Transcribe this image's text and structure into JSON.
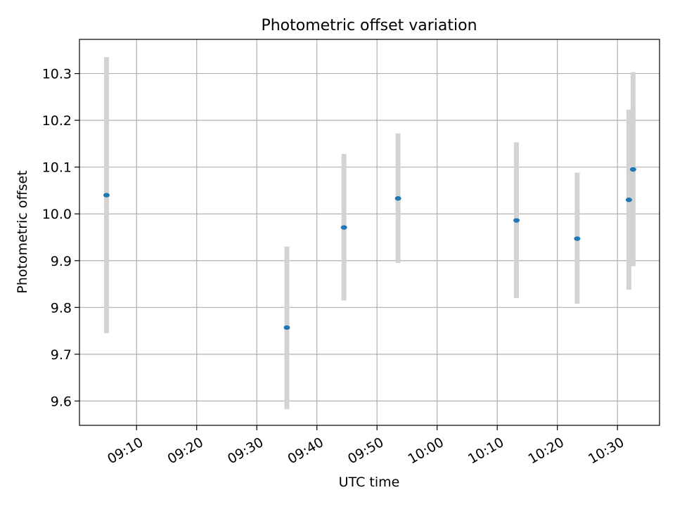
{
  "chart_data": {
    "type": "scatter",
    "title": "Photometric offset variation",
    "xlabel": "UTC time",
    "ylabel": "Photometric offset",
    "x_ticks": [
      "09:10",
      "09:20",
      "09:30",
      "09:40",
      "09:50",
      "10:00",
      "10:10",
      "10:20",
      "10:30"
    ],
    "y_ticks": [
      "9.6",
      "9.7",
      "9.8",
      "9.9",
      "10.0",
      "10.1",
      "10.2",
      "10.3"
    ],
    "xlim": [
      "09:00.5",
      "10:37"
    ],
    "ylim": [
      9.548,
      10.373
    ],
    "grid": true,
    "colors": {
      "marker": "#1f77b4",
      "errorbar": "#d3d3d3",
      "grid": "#b0b0b0"
    },
    "points": [
      {
        "x": "09:05",
        "y": 10.04,
        "yerr_low": 9.745,
        "yerr_high": 10.335
      },
      {
        "x": "09:35",
        "y": 9.757,
        "yerr_low": 9.583,
        "yerr_high": 9.93
      },
      {
        "x": "09:44.5",
        "y": 9.971,
        "yerr_low": 9.815,
        "yerr_high": 10.128
      },
      {
        "x": "09:53.5",
        "y": 10.033,
        "yerr_low": 9.895,
        "yerr_high": 10.172
      },
      {
        "x": "10:13.2",
        "y": 9.986,
        "yerr_low": 9.82,
        "yerr_high": 10.153
      },
      {
        "x": "10:23.3",
        "y": 9.947,
        "yerr_low": 9.808,
        "yerr_high": 10.088
      },
      {
        "x": "10:31.9",
        "y": 10.03,
        "yerr_low": 9.838,
        "yerr_high": 10.223
      },
      {
        "x": "10:32.6",
        "y": 10.095,
        "yerr_low": 9.888,
        "yerr_high": 10.303
      }
    ]
  }
}
